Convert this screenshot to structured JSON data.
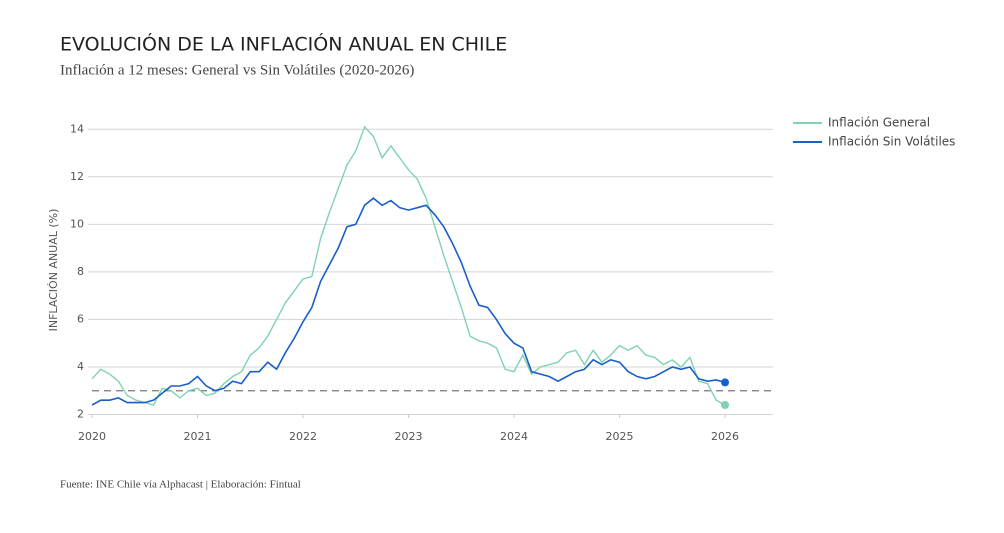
{
  "chart_data": {
    "type": "line",
    "title": "EVOLUCIÓN DE LA INFLACIÓN ANUAL EN CHILE",
    "subtitle": "Inflación a 12 meses: General vs Sin Volátiles (2020-2026)",
    "y_label": "INFLACIÓN ANUAL (%)",
    "source": "Fuente: INE Chile vía Alphacast | Elaboración: Fintual",
    "x": [
      "2020-01",
      "2020-02",
      "2020-03",
      "2020-04",
      "2020-05",
      "2020-06",
      "2020-07",
      "2020-08",
      "2020-09",
      "2020-10",
      "2020-11",
      "2020-12",
      "2021-01",
      "2021-02",
      "2021-03",
      "2021-04",
      "2021-05",
      "2021-06",
      "2021-07",
      "2021-08",
      "2021-09",
      "2021-10",
      "2021-11",
      "2021-12",
      "2022-01",
      "2022-02",
      "2022-03",
      "2022-04",
      "2022-05",
      "2022-06",
      "2022-07",
      "2022-08",
      "2022-09",
      "2022-10",
      "2022-11",
      "2022-12",
      "2023-01",
      "2023-02",
      "2023-03",
      "2023-04",
      "2023-05",
      "2023-06",
      "2023-07",
      "2023-08",
      "2023-09",
      "2023-10",
      "2023-11",
      "2023-12",
      "2024-01",
      "2024-02",
      "2024-03",
      "2024-04",
      "2024-05",
      "2024-06",
      "2024-07",
      "2024-08",
      "2024-09",
      "2024-10",
      "2024-11",
      "2024-12",
      "2025-01",
      "2025-02",
      "2025-03",
      "2025-04",
      "2025-05",
      "2025-06",
      "2025-07",
      "2025-08",
      "2025-09",
      "2025-10",
      "2025-11",
      "2025-12",
      "2026-01"
    ],
    "series": [
      {
        "name": "Inflación General",
        "color": "#7fd3b0",
        "values": [
          3.5,
          3.9,
          3.7,
          3.4,
          2.8,
          2.6,
          2.5,
          2.4,
          3.1,
          3.0,
          2.7,
          3.0,
          3.1,
          2.8,
          2.9,
          3.3,
          3.6,
          3.8,
          4.5,
          4.8,
          5.3,
          6.0,
          6.7,
          7.2,
          7.7,
          7.8,
          9.4,
          10.5,
          11.5,
          12.5,
          13.1,
          14.1,
          13.7,
          12.8,
          13.3,
          12.8,
          12.3,
          11.9,
          11.1,
          9.9,
          8.7,
          7.6,
          6.5,
          5.3,
          5.1,
          5.0,
          4.8,
          3.9,
          3.8,
          4.5,
          3.7,
          4.0,
          4.1,
          4.2,
          4.6,
          4.7,
          4.1,
          4.7,
          4.2,
          4.5,
          4.9,
          4.7,
          4.9,
          4.5,
          4.4,
          4.1,
          4.3,
          4.0,
          4.4,
          3.4,
          3.3,
          2.6,
          2.4
        ]
      },
      {
        "name": "Inflación Sin Volátiles",
        "color": "#1a5fc9",
        "values": [
          2.4,
          2.6,
          2.6,
          2.7,
          2.5,
          2.5,
          2.5,
          2.6,
          2.9,
          3.2,
          3.2,
          3.3,
          3.6,
          3.2,
          3.0,
          3.1,
          3.4,
          3.3,
          3.8,
          3.8,
          4.2,
          3.9,
          4.6,
          5.2,
          5.9,
          6.5,
          7.6,
          8.3,
          9.0,
          9.9,
          10.0,
          10.8,
          11.1,
          10.8,
          11.0,
          10.7,
          10.6,
          10.7,
          10.8,
          10.4,
          9.9,
          9.2,
          8.4,
          7.4,
          6.6,
          6.5,
          6.0,
          5.4,
          5.0,
          4.8,
          3.8,
          3.7,
          3.6,
          3.4,
          3.6,
          3.8,
          3.9,
          4.3,
          4.1,
          4.3,
          4.2,
          3.8,
          3.6,
          3.5,
          3.6,
          3.8,
          4.0,
          3.9,
          4.0,
          3.5,
          3.4,
          3.45,
          3.35
        ]
      }
    ],
    "reference_line": 3,
    "xlim": [
      "2020-01",
      "2026-06"
    ],
    "xticks": [
      {
        "value": "2020-01",
        "label": "2020"
      },
      {
        "value": "2021-01",
        "label": "2021"
      },
      {
        "value": "2022-01",
        "label": "2022"
      },
      {
        "value": "2023-01",
        "label": "2023"
      },
      {
        "value": "2024-01",
        "label": "2024"
      },
      {
        "value": "2025-01",
        "label": "2025"
      },
      {
        "value": "2026-01",
        "label": "2026"
      }
    ],
    "ylim": [
      1.6,
      14.6
    ],
    "yticks": [
      2,
      4,
      6,
      8,
      10,
      12,
      14
    ],
    "grid": true,
    "legend": "right"
  }
}
